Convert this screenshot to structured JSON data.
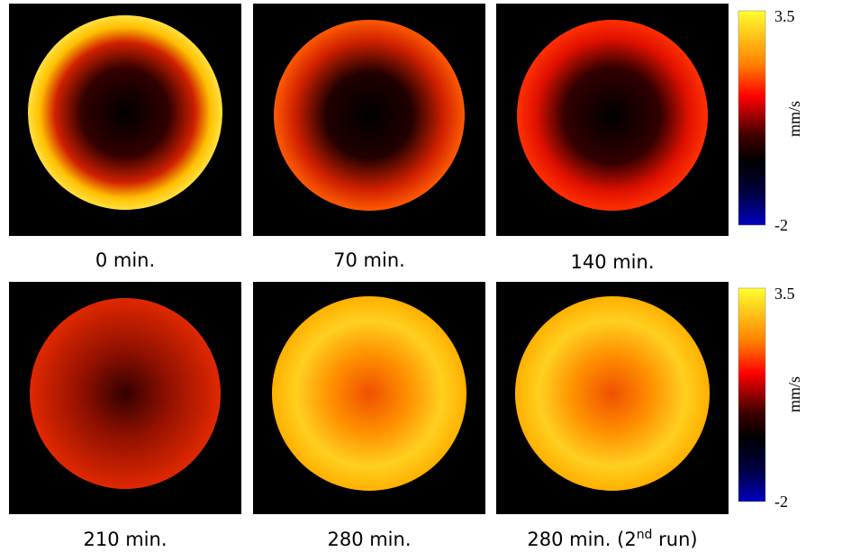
{
  "panels": [
    {
      "label": "0 min."
    },
    {
      "label": "70 min."
    },
    {
      "label": "140 min."
    },
    {
      "label": "210 min."
    },
    {
      "label": "280 min."
    },
    {
      "label_parts": [
        "280 min. (2",
        "nd",
        " run)"
      ]
    }
  ],
  "colorbars": [
    {
      "max": "3.5",
      "min": "-2",
      "unit": "mm/s"
    },
    {
      "max": "3.5",
      "min": "-2",
      "unit": "mm/s"
    }
  ]
}
